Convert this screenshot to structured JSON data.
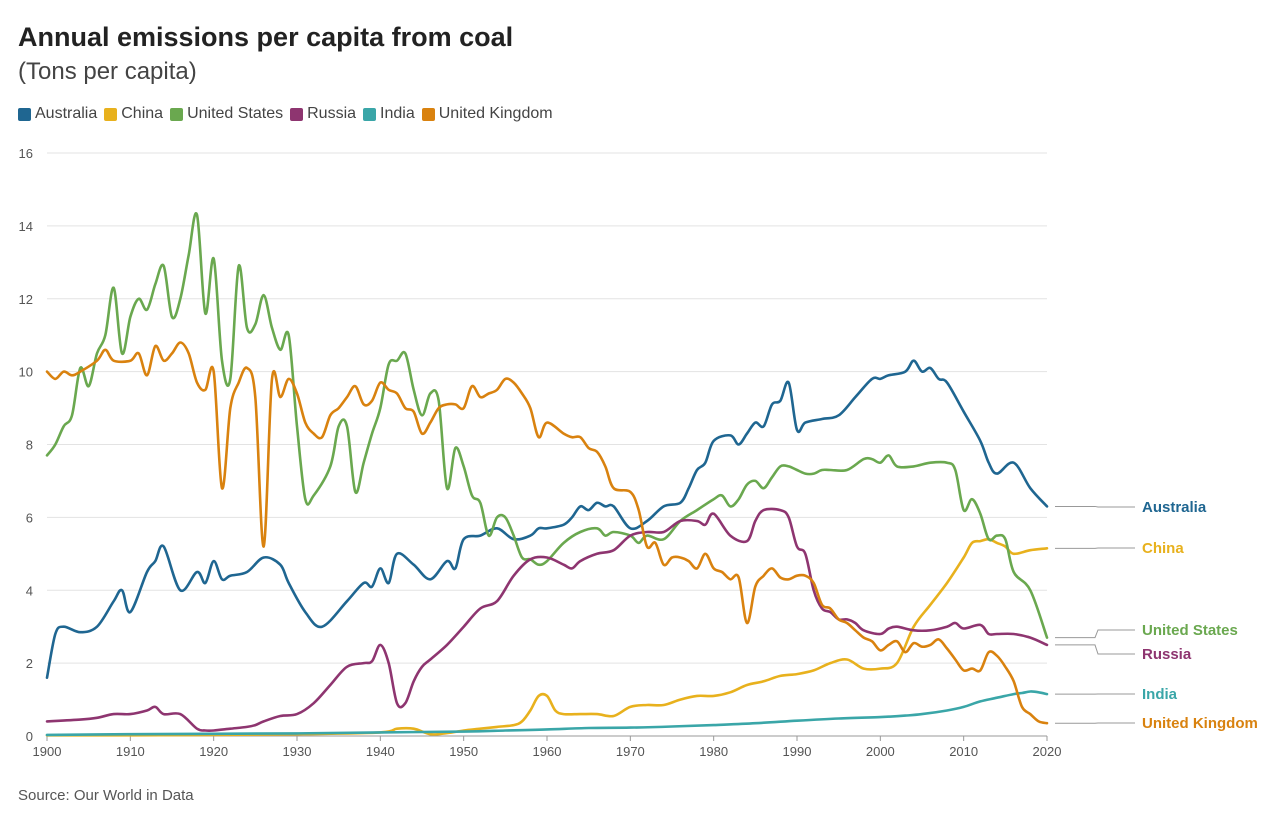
{
  "title": "Annual emissions per capita from coal",
  "subtitle": "(Tons per capita)",
  "source": "Source: Our World in Data",
  "chart_data": {
    "type": "line",
    "ylim": [
      0,
      16
    ],
    "xlim": [
      1900,
      2020
    ],
    "yticks": [
      "0",
      "2",
      "4",
      "6",
      "8",
      "10",
      "12",
      "14",
      "16"
    ],
    "xticks": [
      "1900",
      "1910",
      "1920",
      "1930",
      "1940",
      "1950",
      "1960",
      "1970",
      "1980",
      "1990",
      "2000",
      "2010",
      "2020"
    ],
    "grid": true,
    "legend": "top-left",
    "series": [
      {
        "name": "Australia",
        "color": "#1f6691",
        "x": [
          1900,
          1901,
          1902,
          1904,
          1906,
          1908,
          1909,
          1910,
          1912,
          1913,
          1914,
          1916,
          1918,
          1919,
          1920,
          1921,
          1922,
          1924,
          1926,
          1928,
          1929,
          1931,
          1933,
          1936,
          1938,
          1939,
          1940,
          1941,
          1942,
          1944,
          1946,
          1948,
          1949,
          1950,
          1952,
          1954,
          1956,
          1958,
          1959,
          1960,
          1962,
          1963,
          1964,
          1965,
          1966,
          1967,
          1968,
          1970,
          1972,
          1974,
          1976,
          1977,
          1978,
          1979,
          1980,
          1982,
          1983,
          1984,
          1985,
          1986,
          1987,
          1988,
          1989,
          1990,
          1991,
          1993,
          1995,
          1997,
          1999,
          2000,
          2001,
          2003,
          2004,
          2005,
          2006,
          2007,
          2008,
          2010,
          2012,
          2013,
          2014,
          2016,
          2018,
          2020
        ],
        "y": [
          1.6,
          2.8,
          3.0,
          2.85,
          3.0,
          3.7,
          4.0,
          3.4,
          4.5,
          4.8,
          5.2,
          4.0,
          4.5,
          4.2,
          4.8,
          4.3,
          4.4,
          4.5,
          4.9,
          4.7,
          4.2,
          3.4,
          3.0,
          3.7,
          4.2,
          4.1,
          4.6,
          4.2,
          5.0,
          4.7,
          4.3,
          4.8,
          4.6,
          5.4,
          5.5,
          5.7,
          5.4,
          5.5,
          5.7,
          5.7,
          5.8,
          6.0,
          6.3,
          6.2,
          6.4,
          6.3,
          6.3,
          5.7,
          5.9,
          6.3,
          6.4,
          6.8,
          7.3,
          7.5,
          8.1,
          8.25,
          8.0,
          8.3,
          8.6,
          8.5,
          9.1,
          9.2,
          9.7,
          8.4,
          8.6,
          8.7,
          8.8,
          9.3,
          9.8,
          9.8,
          9.9,
          10.0,
          10.3,
          10.0,
          10.1,
          9.8,
          9.7,
          8.9,
          8.1,
          7.5,
          7.2,
          7.5,
          6.8,
          6.3
        ]
      },
      {
        "name": "China",
        "color": "#e8b11d",
        "x": [
          1900,
          1910,
          1920,
          1930,
          1940,
          1942,
          1944,
          1946,
          1948,
          1950,
          1952,
          1954,
          1956,
          1957,
          1958,
          1959,
          1960,
          1961,
          1962,
          1964,
          1966,
          1968,
          1970,
          1972,
          1974,
          1976,
          1978,
          1980,
          1982,
          1984,
          1986,
          1988,
          1990,
          1992,
          1994,
          1996,
          1998,
          2000,
          2002,
          2004,
          2006,
          2008,
          2010,
          2011,
          2012,
          2013,
          2014,
          2015,
          2016,
          2018,
          2020
        ],
        "y": [
          0.02,
          0.02,
          0.03,
          0.05,
          0.1,
          0.2,
          0.2,
          0.05,
          0.08,
          0.15,
          0.2,
          0.25,
          0.3,
          0.4,
          0.7,
          1.1,
          1.1,
          0.7,
          0.6,
          0.6,
          0.6,
          0.55,
          0.8,
          0.85,
          0.85,
          1.0,
          1.1,
          1.1,
          1.2,
          1.4,
          1.5,
          1.65,
          1.7,
          1.8,
          2.0,
          2.1,
          1.85,
          1.85,
          2.0,
          3.0,
          3.6,
          4.2,
          4.9,
          5.3,
          5.35,
          5.4,
          5.3,
          5.2,
          5.0,
          5.1,
          5.15
        ]
      },
      {
        "name": "United States",
        "color": "#6aa84f",
        "x": [
          1900,
          1901,
          1902,
          1903,
          1904,
          1905,
          1906,
          1907,
          1908,
          1909,
          1910,
          1911,
          1912,
          1913,
          1914,
          1915,
          1916,
          1917,
          1918,
          1919,
          1920,
          1921,
          1922,
          1923,
          1924,
          1925,
          1926,
          1927,
          1928,
          1929,
          1930,
          1931,
          1932,
          1934,
          1935,
          1936,
          1937,
          1938,
          1939,
          1940,
          1941,
          1942,
          1943,
          1944,
          1945,
          1946,
          1947,
          1948,
          1949,
          1950,
          1951,
          1952,
          1953,
          1954,
          1955,
          1956,
          1957,
          1958,
          1959,
          1960,
          1962,
          1964,
          1966,
          1967,
          1968,
          1970,
          1971,
          1972,
          1974,
          1976,
          1978,
          1980,
          1981,
          1982,
          1983,
          1984,
          1985,
          1986,
          1987,
          1988,
          1989,
          1990,
          1991,
          1992,
          1993,
          1994,
          1996,
          1998,
          1999,
          2000,
          2001,
          2002,
          2004,
          2006,
          2008,
          2009,
          2010,
          2011,
          2012,
          2013,
          2014,
          2015,
          2016,
          2018,
          2020
        ],
        "y": [
          7.7,
          8.0,
          8.5,
          8.8,
          10.1,
          9.6,
          10.5,
          11.0,
          12.3,
          10.5,
          11.5,
          12.0,
          11.7,
          12.4,
          12.9,
          11.5,
          12.0,
          13.2,
          14.3,
          11.6,
          13.1,
          10.3,
          9.8,
          12.9,
          11.2,
          11.3,
          12.1,
          11.2,
          10.6,
          11.0,
          8.5,
          6.5,
          6.6,
          7.4,
          8.5,
          8.5,
          6.7,
          7.5,
          8.3,
          9.0,
          10.2,
          10.3,
          10.5,
          9.5,
          8.8,
          9.4,
          9.2,
          6.8,
          7.9,
          7.4,
          6.6,
          6.4,
          5.5,
          6.0,
          6.0,
          5.5,
          4.9,
          4.85,
          4.7,
          4.8,
          5.3,
          5.6,
          5.7,
          5.5,
          5.6,
          5.5,
          5.3,
          5.5,
          5.4,
          5.9,
          6.2,
          6.5,
          6.6,
          6.3,
          6.5,
          6.9,
          7.0,
          6.8,
          7.1,
          7.4,
          7.4,
          7.3,
          7.2,
          7.2,
          7.3,
          7.3,
          7.3,
          7.6,
          7.6,
          7.5,
          7.7,
          7.4,
          7.4,
          7.5,
          7.5,
          7.3,
          6.2,
          6.5,
          6.1,
          5.4,
          5.5,
          5.4,
          4.5,
          4.0,
          2.7
        ]
      },
      {
        "name": "Russia",
        "color": "#8e3570",
        "x": [
          1900,
          1904,
          1906,
          1908,
          1910,
          1912,
          1913,
          1914,
          1916,
          1918,
          1919,
          1920,
          1922,
          1924,
          1925,
          1926,
          1928,
          1930,
          1932,
          1934,
          1936,
          1938,
          1939,
          1940,
          1941,
          1942,
          1943,
          1944,
          1945,
          1946,
          1948,
          1950,
          1952,
          1954,
          1956,
          1958,
          1960,
          1962,
          1963,
          1964,
          1966,
          1968,
          1970,
          1972,
          1974,
          1976,
          1978,
          1979,
          1980,
          1982,
          1984,
          1985,
          1986,
          1988,
          1989,
          1990,
          1991,
          1992,
          1993,
          1994,
          1995,
          1996,
          1997,
          1998,
          2000,
          2001,
          2002,
          2004,
          2006,
          2008,
          2009,
          2010,
          2012,
          2013,
          2014,
          2016,
          2018,
          2020
        ],
        "y": [
          0.4,
          0.45,
          0.5,
          0.6,
          0.6,
          0.7,
          0.8,
          0.6,
          0.6,
          0.2,
          0.15,
          0.15,
          0.2,
          0.25,
          0.3,
          0.4,
          0.55,
          0.6,
          0.9,
          1.4,
          1.9,
          2.0,
          2.05,
          2.5,
          2.0,
          0.9,
          0.9,
          1.5,
          1.9,
          2.1,
          2.5,
          3.0,
          3.5,
          3.7,
          4.4,
          4.85,
          4.9,
          4.7,
          4.6,
          4.8,
          5.0,
          5.1,
          5.5,
          5.6,
          5.6,
          5.9,
          5.9,
          5.8,
          6.1,
          5.5,
          5.35,
          5.9,
          6.2,
          6.2,
          6.0,
          5.2,
          5.0,
          4.0,
          3.5,
          3.4,
          3.2,
          3.2,
          3.1,
          2.9,
          2.8,
          2.95,
          3.0,
          2.9,
          2.9,
          3.0,
          3.1,
          2.95,
          3.05,
          2.8,
          2.8,
          2.8,
          2.7,
          2.5
        ]
      },
      {
        "name": "India",
        "color": "#3aa6a8",
        "x": [
          1900,
          1910,
          1920,
          1930,
          1940,
          1950,
          1955,
          1960,
          1965,
          1970,
          1975,
          1980,
          1985,
          1990,
          1995,
          2000,
          2003,
          2005,
          2008,
          2010,
          2012,
          2014,
          2016,
          2017,
          2018,
          2019,
          2020
        ],
        "y": [
          0.03,
          0.05,
          0.06,
          0.07,
          0.1,
          0.12,
          0.15,
          0.18,
          0.22,
          0.23,
          0.26,
          0.3,
          0.35,
          0.42,
          0.48,
          0.52,
          0.56,
          0.6,
          0.7,
          0.8,
          0.95,
          1.05,
          1.15,
          1.18,
          1.22,
          1.2,
          1.15
        ]
      },
      {
        "name": "United Kingdom",
        "color": "#d9820f",
        "x": [
          1900,
          1901,
          1902,
          1903,
          1904,
          1906,
          1907,
          1908,
          1910,
          1911,
          1912,
          1913,
          1914,
          1915,
          1916,
          1917,
          1918,
          1919,
          1920,
          1921,
          1922,
          1923,
          1924,
          1925,
          1926,
          1927,
          1928,
          1929,
          1930,
          1931,
          1932,
          1933,
          1934,
          1935,
          1936,
          1937,
          1938,
          1939,
          1940,
          1941,
          1942,
          1943,
          1944,
          1945,
          1946,
          1947,
          1948,
          1949,
          1950,
          1951,
          1952,
          1953,
          1954,
          1955,
          1956,
          1957,
          1958,
          1959,
          1960,
          1962,
          1963,
          1964,
          1965,
          1966,
          1967,
          1968,
          1970,
          1971,
          1972,
          1973,
          1974,
          1975,
          1976,
          1977,
          1978,
          1979,
          1980,
          1981,
          1982,
          1983,
          1984,
          1985,
          1986,
          1987,
          1988,
          1989,
          1990,
          1991,
          1992,
          1993,
          1994,
          1995,
          1996,
          1997,
          1998,
          1999,
          2000,
          2001,
          2002,
          2003,
          2004,
          2005,
          2006,
          2007,
          2008,
          2009,
          2010,
          2011,
          2012,
          2013,
          2014,
          2015,
          2016,
          2017,
          2018,
          2019,
          2020
        ],
        "y": [
          10.0,
          9.8,
          10.0,
          9.9,
          10.0,
          10.3,
          10.6,
          10.3,
          10.3,
          10.5,
          9.9,
          10.7,
          10.3,
          10.5,
          10.8,
          10.5,
          9.7,
          9.5,
          10.0,
          6.8,
          9.0,
          9.7,
          10.1,
          9.3,
          5.2,
          9.8,
          9.3,
          9.8,
          9.4,
          8.6,
          8.3,
          8.2,
          8.8,
          9.0,
          9.3,
          9.6,
          9.1,
          9.2,
          9.7,
          9.5,
          9.4,
          9.0,
          8.9,
          8.3,
          8.6,
          9.0,
          9.1,
          9.1,
          9.0,
          9.6,
          9.3,
          9.4,
          9.5,
          9.8,
          9.7,
          9.4,
          9.0,
          8.2,
          8.6,
          8.3,
          8.2,
          8.2,
          7.9,
          7.8,
          7.4,
          6.8,
          6.7,
          6.2,
          5.2,
          5.3,
          4.7,
          4.9,
          4.9,
          4.8,
          4.6,
          5.0,
          4.6,
          4.5,
          4.3,
          4.35,
          3.1,
          4.1,
          4.4,
          4.6,
          4.35,
          4.3,
          4.4,
          4.4,
          4.2,
          3.6,
          3.5,
          3.2,
          3.1,
          2.9,
          2.7,
          2.6,
          2.35,
          2.5,
          2.6,
          2.3,
          2.55,
          2.45,
          2.5,
          2.65,
          2.4,
          2.1,
          1.8,
          1.85,
          1.8,
          2.3,
          2.2,
          1.9,
          1.5,
          0.8,
          0.6,
          0.4,
          0.35
        ]
      }
    ]
  }
}
